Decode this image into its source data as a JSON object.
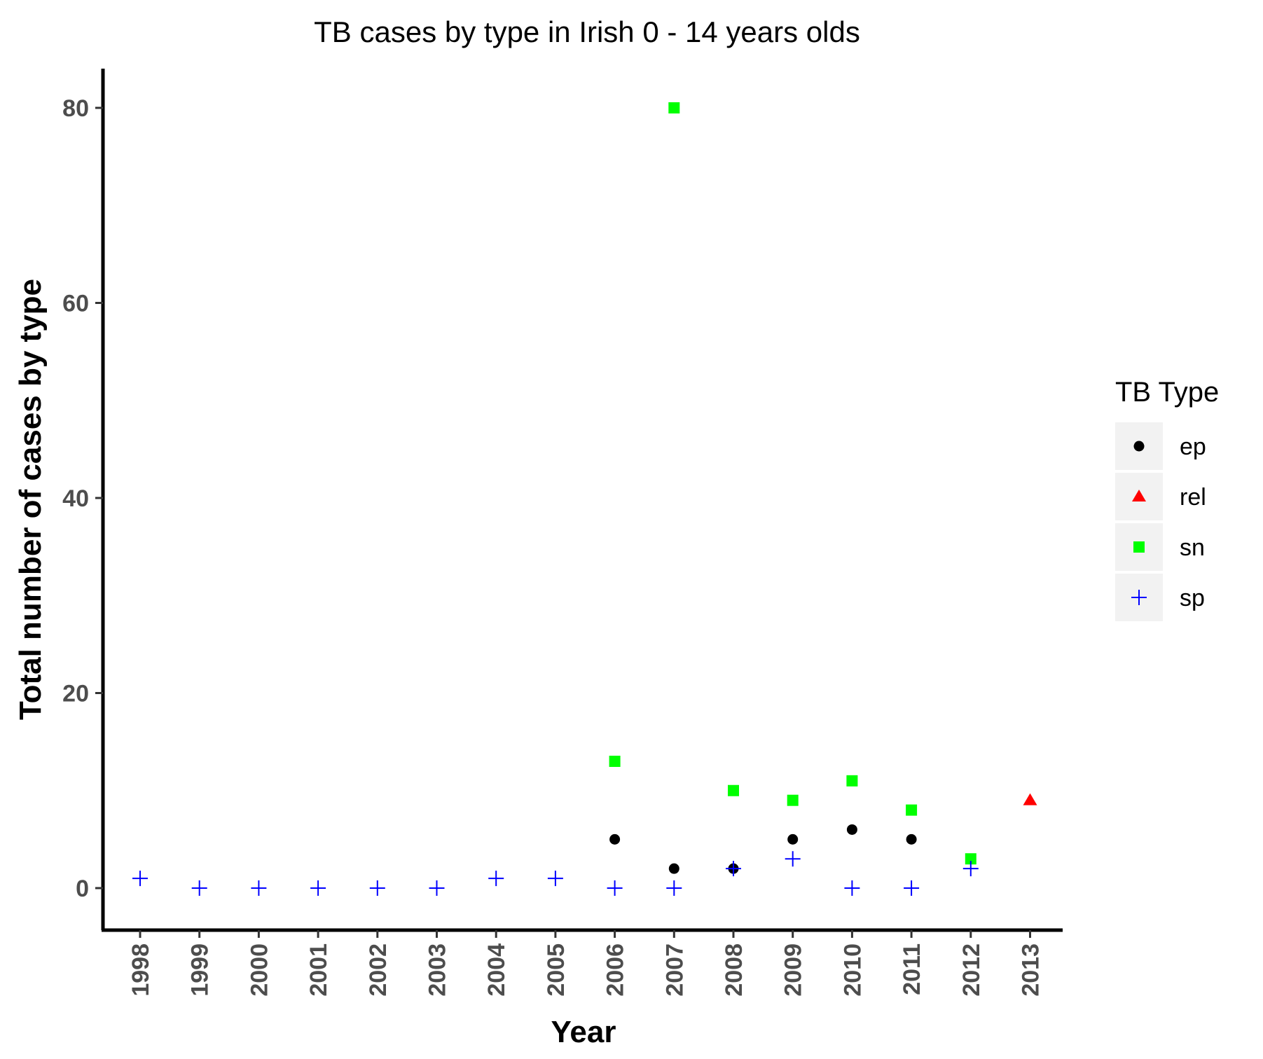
{
  "chart_data": {
    "type": "scatter",
    "title": "TB cases by type in Irish 0 - 14 years olds",
    "xlabel": "Year",
    "ylabel": "Total number of cases by type",
    "x_categories": [
      "1998",
      "1999",
      "2000",
      "2001",
      "2002",
      "2003",
      "2004",
      "2005",
      "2006",
      "2007",
      "2008",
      "2009",
      "2010",
      "2011",
      "2012",
      "2013"
    ],
    "y_ticks": [
      0,
      20,
      40,
      60,
      80
    ],
    "ylim": [
      -4,
      84
    ],
    "grid": false,
    "legend": {
      "title": "TB Type",
      "placement": "right",
      "entries": [
        "ep",
        "rel",
        "sn",
        "sp"
      ]
    },
    "series": [
      {
        "name": "ep",
        "shape": "circle",
        "color": "#000000",
        "points": [
          {
            "x": "2006",
            "y": 5
          },
          {
            "x": "2007",
            "y": 2
          },
          {
            "x": "2008",
            "y": 2
          },
          {
            "x": "2009",
            "y": 5
          },
          {
            "x": "2010",
            "y": 6
          },
          {
            "x": "2011",
            "y": 5
          }
        ]
      },
      {
        "name": "rel",
        "shape": "triangle",
        "color": "#ff0000",
        "points": [
          {
            "x": "2013",
            "y": 9
          }
        ]
      },
      {
        "name": "sn",
        "shape": "square",
        "color": "#00ff00",
        "points": [
          {
            "x": "2006",
            "y": 13
          },
          {
            "x": "2007",
            "y": 80
          },
          {
            "x": "2008",
            "y": 10
          },
          {
            "x": "2009",
            "y": 9
          },
          {
            "x": "2010",
            "y": 11
          },
          {
            "x": "2011",
            "y": 8
          },
          {
            "x": "2012",
            "y": 3
          }
        ]
      },
      {
        "name": "sp",
        "shape": "plus",
        "color": "#0000ff",
        "points": [
          {
            "x": "1998",
            "y": 1
          },
          {
            "x": "1999",
            "y": 0
          },
          {
            "x": "2000",
            "y": 0
          },
          {
            "x": "2001",
            "y": 0
          },
          {
            "x": "2002",
            "y": 0
          },
          {
            "x": "2003",
            "y": 0
          },
          {
            "x": "2004",
            "y": 1
          },
          {
            "x": "2005",
            "y": 1
          },
          {
            "x": "2006",
            "y": 0
          },
          {
            "x": "2007",
            "y": 0
          },
          {
            "x": "2008",
            "y": 2
          },
          {
            "x": "2009",
            "y": 3
          },
          {
            "x": "2010",
            "y": 0
          },
          {
            "x": "2011",
            "y": 0
          },
          {
            "x": "2012",
            "y": 2
          }
        ]
      }
    ]
  }
}
